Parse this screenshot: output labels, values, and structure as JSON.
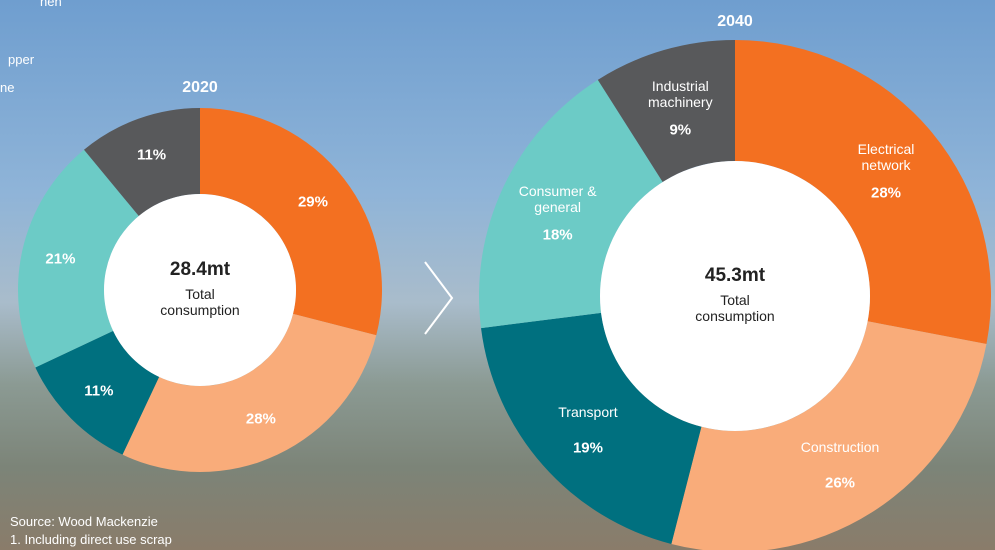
{
  "background_text": [
    "hen",
    "pper",
    "ne"
  ],
  "source": "Source: Wood Mackenzie",
  "footnote": "1.  Including direct use scrap",
  "chart_data": [
    {
      "type": "donut",
      "title": "2020",
      "center_value": "28.4mt",
      "center_label": "Total consumption",
      "values": [
        29,
        28,
        11,
        21,
        11
      ],
      "value_labels": [
        "29%",
        "28%",
        "11%",
        "21%",
        "11%"
      ],
      "colors": [
        "#f37021",
        "#f9ac7a",
        "#00707f",
        "#6ccbc6",
        "#58595b"
      ]
    },
    {
      "type": "donut",
      "title": "2040",
      "center_value": "45.3mt",
      "center_label": "Total consumption",
      "categories": [
        "Electrical network",
        "Construction",
        "Transport",
        "Consumer & general",
        "Industrial machinery"
      ],
      "values": [
        28,
        26,
        19,
        18,
        9
      ],
      "value_labels": [
        "28%",
        "26%",
        "19%",
        "18%",
        "9%"
      ],
      "colors": [
        "#f37021",
        "#f9ac7a",
        "#00707f",
        "#6ccbc6",
        "#58595b"
      ]
    }
  ]
}
